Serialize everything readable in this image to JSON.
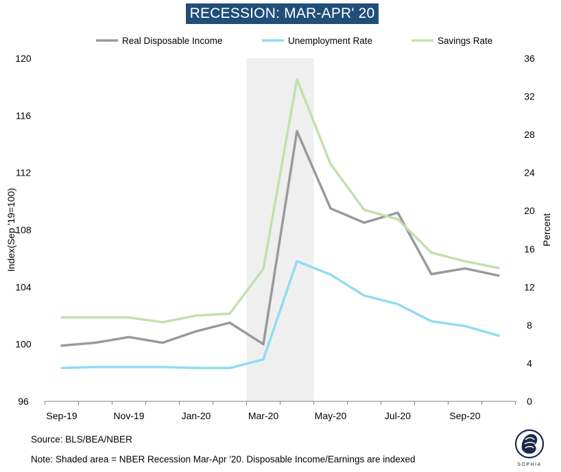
{
  "chart_data": {
    "type": "line",
    "title": "RECESSION: MAR-APR' 20",
    "x": [
      "Sep-19",
      "Oct-19",
      "Nov-19",
      "Dec-19",
      "Jan-20",
      "Feb-20",
      "Mar-20",
      "Apr-20",
      "May-20",
      "Jun-20",
      "Jul-20",
      "Aug-20",
      "Sep-20",
      "Oct-20"
    ],
    "x_tick_labels": [
      "Sep-19",
      "Nov-19",
      "Jan-20",
      "Mar-20",
      "May-20",
      "Jul-20",
      "Sep-20"
    ],
    "y_left": {
      "label": "Index(Sep '19=100)",
      "range": [
        96,
        120
      ],
      "ticks": [
        96,
        100,
        104,
        108,
        112,
        116,
        120
      ]
    },
    "y_right": {
      "label": "Percent",
      "range": [
        0,
        36
      ],
      "ticks": [
        0,
        4,
        8,
        12,
        16,
        20,
        24,
        28,
        32,
        36
      ]
    },
    "series": [
      {
        "name": "Real Disposable Income",
        "axis": "left",
        "color": "#999999",
        "values": [
          99.9,
          100.1,
          100.5,
          100.1,
          100.9,
          101.5,
          100.0,
          114.9,
          109.5,
          108.5,
          109.2,
          104.9,
          105.3,
          104.8
        ]
      },
      {
        "name": "Unemployment Rate",
        "axis": "right",
        "color": "#8fdcf2",
        "values": [
          3.5,
          3.6,
          3.6,
          3.6,
          3.5,
          3.5,
          4.4,
          14.7,
          13.3,
          11.1,
          10.2,
          8.4,
          7.9,
          6.9
        ]
      },
      {
        "name": "Savings Rate",
        "axis": "right",
        "color": "#c3e0ac",
        "values": [
          8.8,
          8.8,
          8.8,
          8.3,
          9.0,
          9.2,
          13.9,
          33.8,
          24.9,
          20.1,
          19.1,
          15.6,
          14.7,
          14.0
        ]
      }
    ],
    "shaded_region": {
      "from": "Mar-20",
      "to": "Apr-20",
      "color": "#efefef"
    },
    "legend_position": "top-center",
    "grid": false
  },
  "footer": {
    "source": "Source: BLS/BEA/NBER",
    "note": "Note: Shaded area = NBER Recession Mar-Apr '20. Disposable Income/Earnings are indexed"
  },
  "logo": {
    "text": "SOPHIA"
  }
}
